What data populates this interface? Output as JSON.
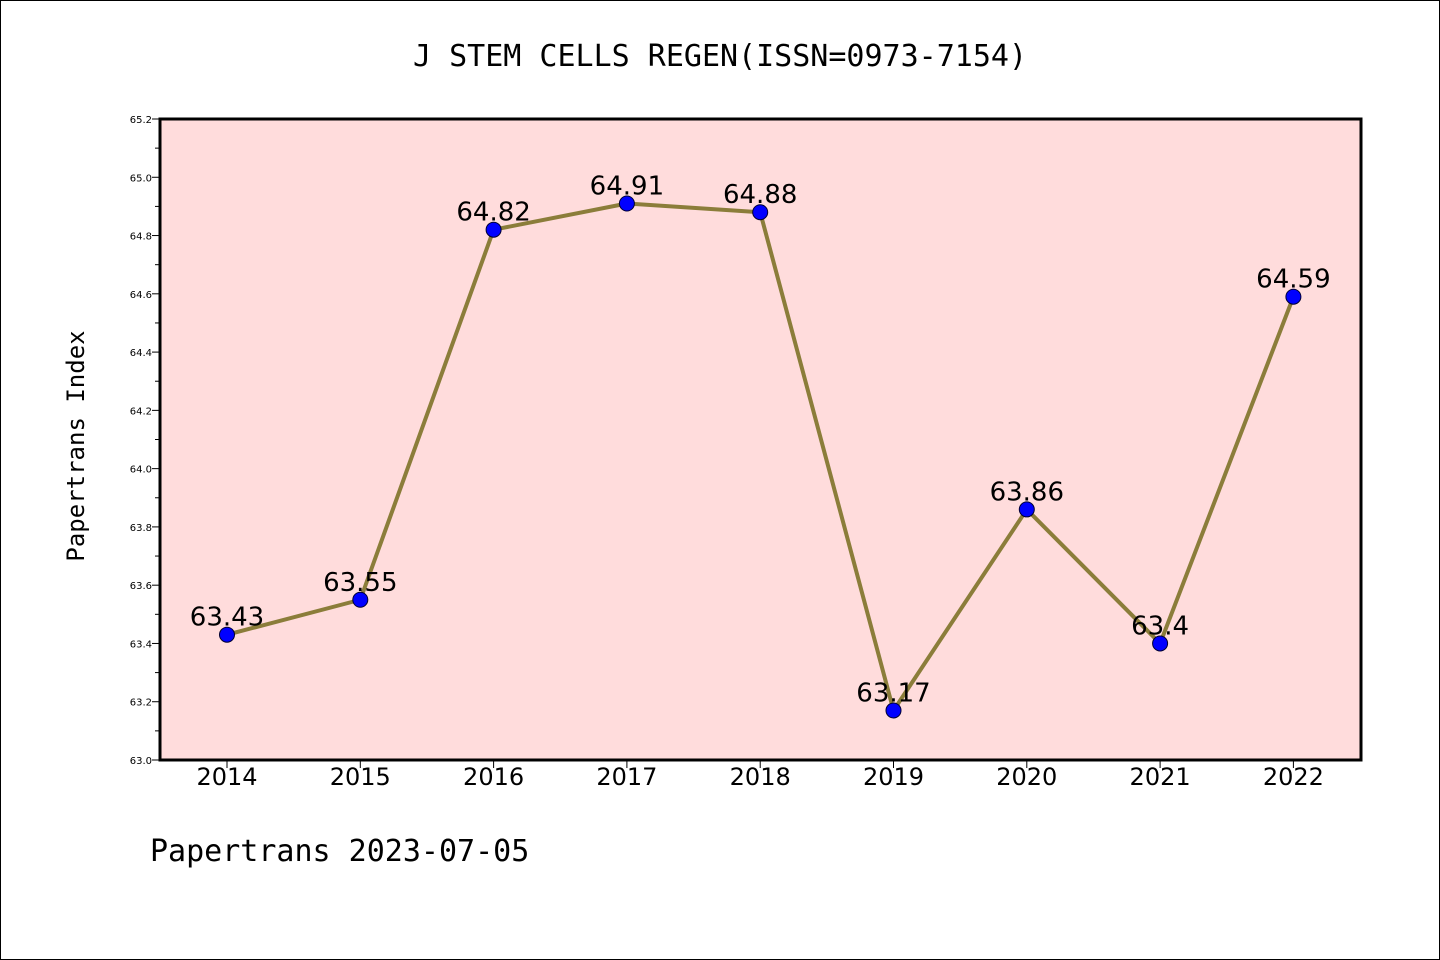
{
  "footer": "Papertrans 2023-07-05",
  "chart_data": {
    "type": "line",
    "title": "J STEM CELLS REGEN(ISSN=0973-7154)",
    "xlabel": "",
    "ylabel": "Papertrans Index",
    "categories": [
      "2014",
      "2015",
      "2016",
      "2017",
      "2018",
      "2019",
      "2020",
      "2021",
      "2022"
    ],
    "values": [
      63.43,
      63.55,
      64.82,
      64.91,
      64.88,
      63.17,
      63.86,
      63.4,
      64.59
    ],
    "labels": [
      "63.43",
      "63.55",
      "64.82",
      "64.91",
      "64.88",
      "63.17",
      "63.86",
      "63.4",
      "64.59"
    ],
    "ylim": [
      63.0,
      65.2
    ],
    "yticks": [
      "63.0",
      "63.2",
      "63.4",
      "63.6",
      "63.8",
      "64.0",
      "64.2",
      "64.4",
      "64.6",
      "64.8",
      "65.0",
      "65.2"
    ],
    "grid": false,
    "colors": {
      "plot_bg": "#ffdcdc",
      "line": "#8b7d3a",
      "marker": "#0000ff"
    }
  }
}
